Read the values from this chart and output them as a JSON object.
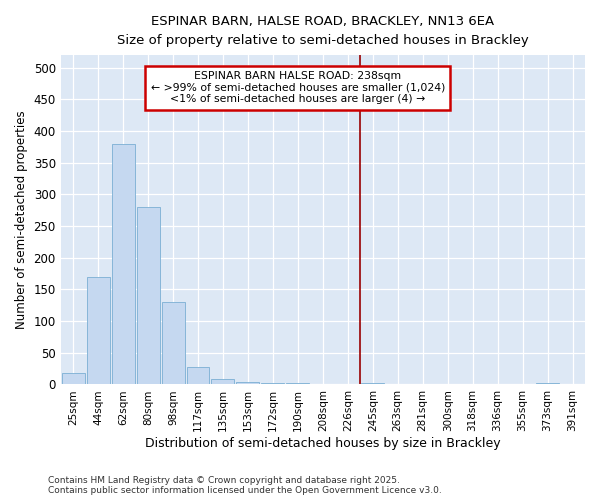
{
  "title_line1": "ESPINAR BARN, HALSE ROAD, BRACKLEY, NN13 6EA",
  "title_line2": "Size of property relative to semi-detached houses in Brackley",
  "xlabel": "Distribution of semi-detached houses by size in Brackley",
  "ylabel": "Number of semi-detached properties",
  "categories": [
    "25sqm",
    "44sqm",
    "62sqm",
    "80sqm",
    "98sqm",
    "117sqm",
    "135sqm",
    "153sqm",
    "172sqm",
    "190sqm",
    "208sqm",
    "226sqm",
    "245sqm",
    "263sqm",
    "281sqm",
    "300sqm",
    "318sqm",
    "336sqm",
    "355sqm",
    "373sqm",
    "391sqm"
  ],
  "values": [
    18,
    170,
    380,
    280,
    130,
    28,
    8,
    4,
    3,
    2,
    1,
    0,
    3,
    0,
    0,
    0,
    0,
    0,
    0,
    2,
    0
  ],
  "bar_color": "#c5d8f0",
  "bar_edgecolor": "#7bafd4",
  "vline_color": "#990000",
  "vline_x": 12,
  "annotation_title": "ESPINAR BARN HALSE ROAD: 238sqm",
  "annotation_line2": "← >99% of semi-detached houses are smaller (1,024)",
  "annotation_line3": "<1% of semi-detached houses are larger (4) →",
  "annotation_box_facecolor": "#ffffff",
  "annotation_box_edgecolor": "#cc0000",
  "plot_bg_color": "#dde8f5",
  "fig_bg_color": "#ffffff",
  "footer_line1": "Contains HM Land Registry data © Crown copyright and database right 2025.",
  "footer_line2": "Contains public sector information licensed under the Open Government Licence v3.0.",
  "ylim": [
    0,
    520
  ],
  "yticks": [
    0,
    50,
    100,
    150,
    200,
    250,
    300,
    350,
    400,
    450,
    500
  ]
}
